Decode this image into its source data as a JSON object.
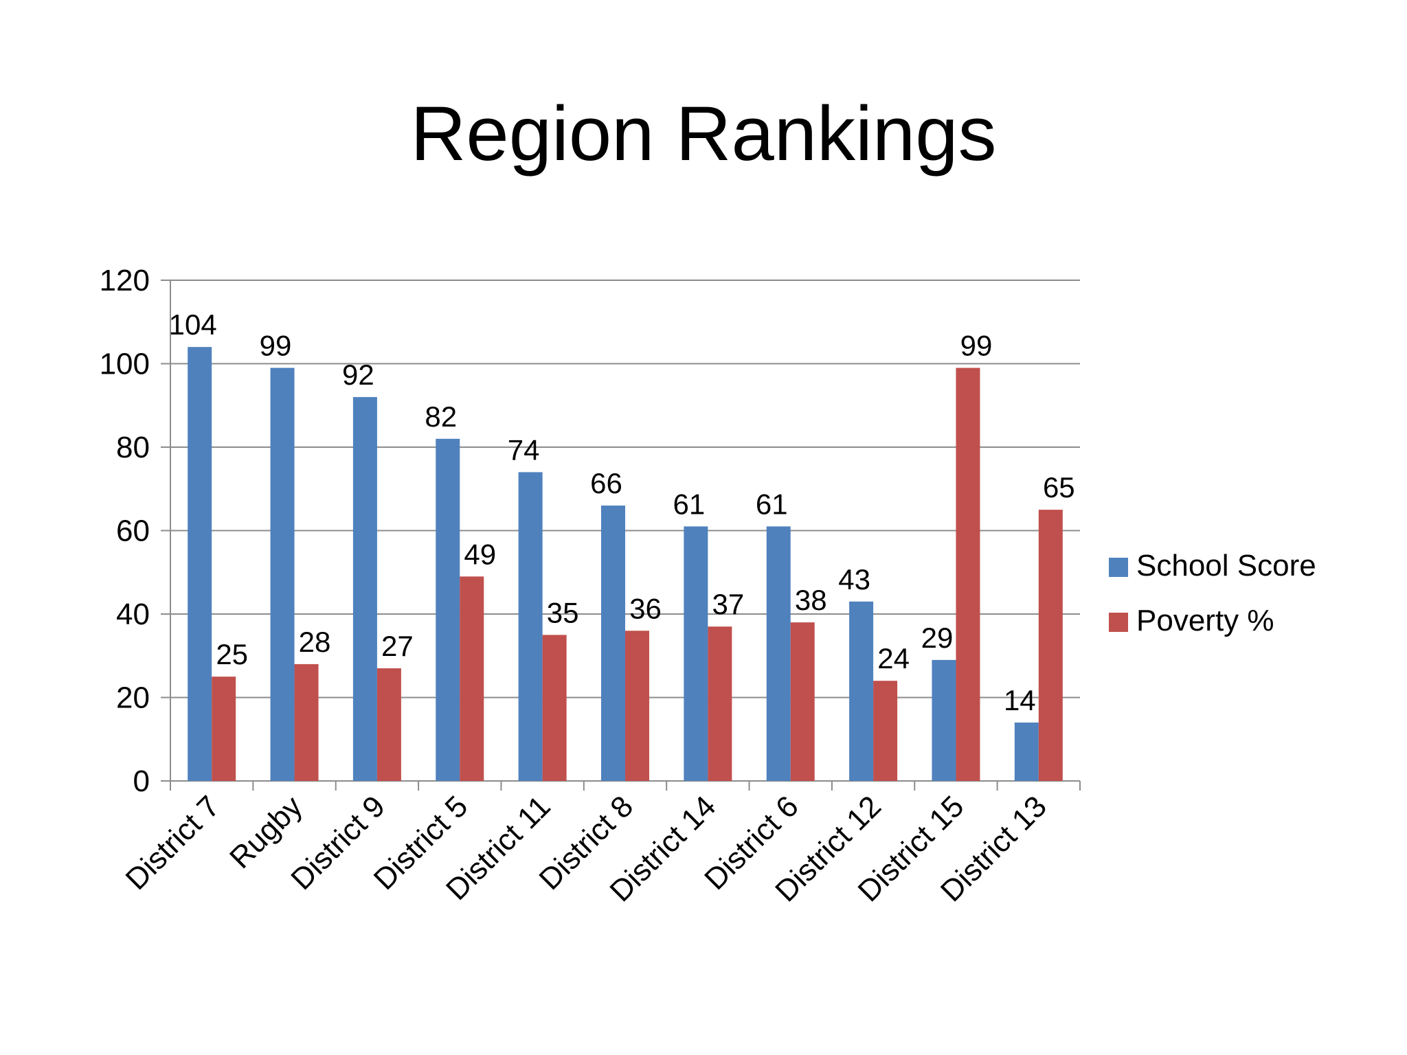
{
  "chart_data": {
    "type": "bar",
    "title": "Region Rankings",
    "xlabel": "",
    "ylabel": "",
    "ylim": [
      0,
      120
    ],
    "yticks": [
      0,
      20,
      40,
      60,
      80,
      100,
      120
    ],
    "grid": true,
    "legend_position": "right",
    "categories": [
      "District 7",
      "Rugby",
      "District 9",
      "District 5",
      "District 11",
      "District 8",
      "District 14",
      "District 6",
      "District 12",
      "District 15",
      "District 13"
    ],
    "series": [
      {
        "name": "School Score",
        "color": "#4F81BD",
        "values": [
          104,
          99,
          92,
          82,
          74,
          66,
          61,
          61,
          43,
          29,
          14
        ]
      },
      {
        "name": "Poverty %",
        "color": "#C0504D",
        "values": [
          25,
          28,
          27,
          49,
          35,
          36,
          37,
          38,
          24,
          99,
          65
        ]
      }
    ]
  }
}
